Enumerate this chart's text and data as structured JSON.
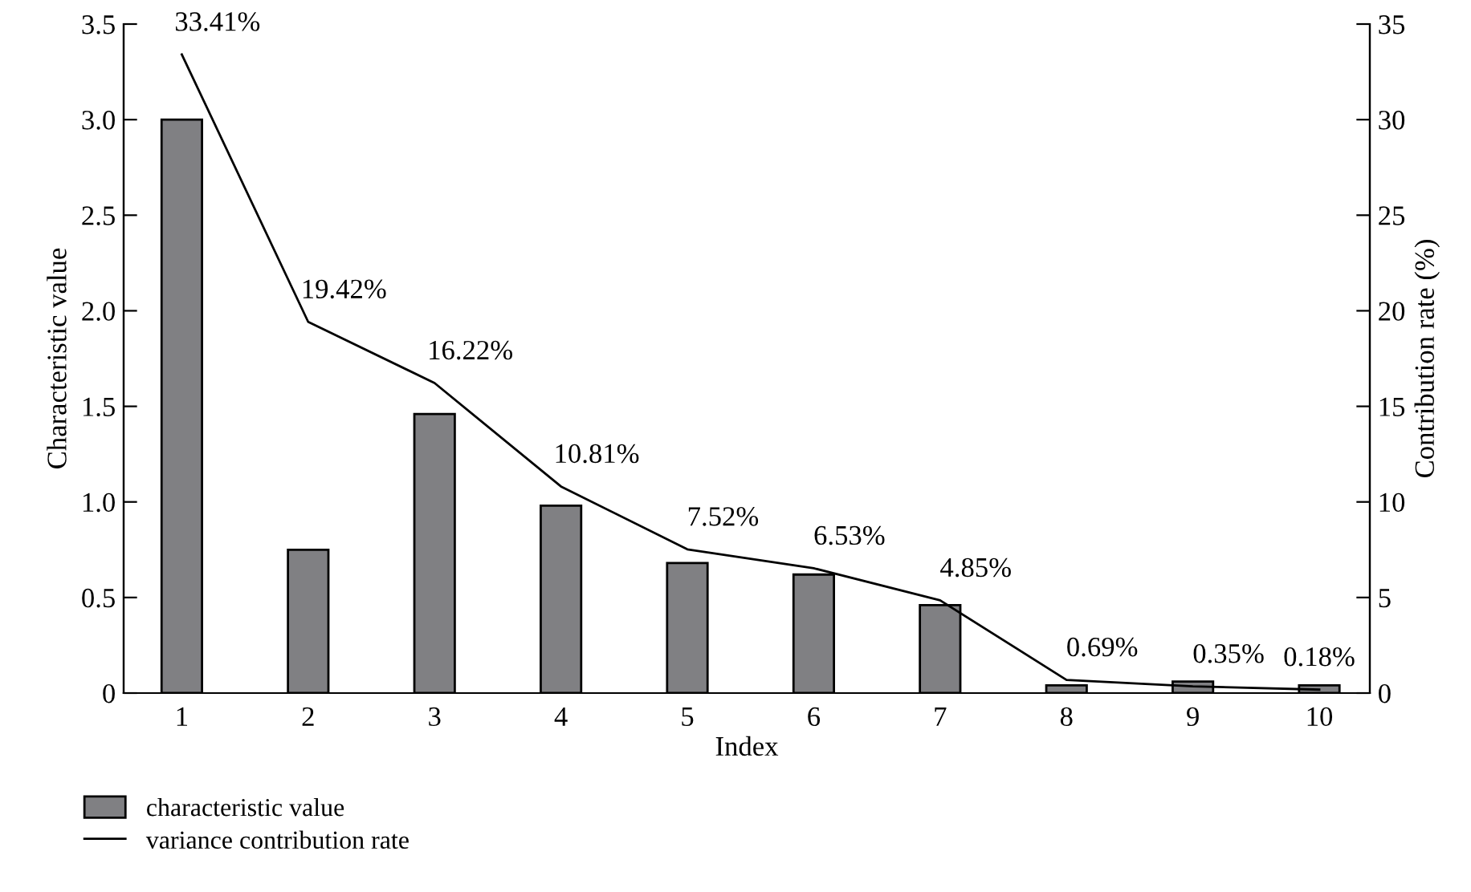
{
  "chart_data": {
    "type": "bar",
    "xlabel": "Index",
    "ylabel": "Characteristic value",
    "y2label": "Contribution rate (%)",
    "categories": [
      "1",
      "2",
      "3",
      "4",
      "5",
      "6",
      "7",
      "8",
      "9",
      "10"
    ],
    "series": [
      {
        "name": "characteristic value",
        "color": "#808083",
        "values": [
          3.0,
          0.75,
          1.46,
          0.98,
          0.68,
          0.62,
          0.46,
          0.04,
          0.06,
          0.04
        ]
      },
      {
        "name": "variance contribution rate",
        "type": "line",
        "axis": "y2",
        "color": "#000000",
        "values": [
          33.41,
          19.42,
          16.22,
          10.81,
          7.52,
          6.53,
          4.85,
          0.69,
          0.35,
          0.18
        ],
        "data_labels": true,
        "value_labels": [
          "33.41%",
          "19.42%",
          "16.22%",
          "10.81%",
          "7.52%",
          "6.53%",
          "4.85%",
          "0.69%",
          "0.35%",
          "0.18%"
        ]
      }
    ],
    "ylim": [
      0,
      3.5
    ],
    "yticks": [
      {
        "value": 0,
        "label": "0"
      },
      0.5,
      {
        "value": 1,
        "label": "1.0"
      },
      1.5,
      {
        "value": 2,
        "label": "2.0"
      },
      2.5,
      {
        "value": 3,
        "label": "3.0"
      },
      3.5
    ],
    "y2lim": [
      0,
      35
    ],
    "y2ticks": [
      0,
      5,
      10,
      15,
      20,
      25,
      30,
      35
    ],
    "legend": "bottom left",
    "grid": false,
    "marker": "none",
    "line_style": "solid"
  }
}
